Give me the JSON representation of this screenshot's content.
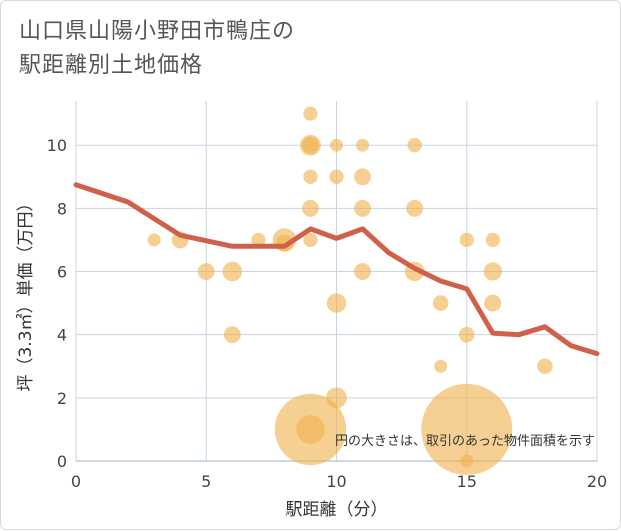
{
  "title_line1": "山口県山陽小野田市鴨庄の",
  "title_line2": "駅距離別土地価格",
  "chart_data": {
    "type": "scatter",
    "xlabel": "駅距離（分）",
    "ylabel": "坪（3.3㎡）単価（万円）",
    "xlim": [
      0,
      20
    ],
    "ylim": [
      0,
      11.4
    ],
    "x_ticks": [
      0,
      5,
      10,
      15,
      20
    ],
    "y_ticks": [
      0,
      2,
      4,
      6,
      8,
      10
    ],
    "grid": true,
    "annotation": "円の大きさは、取引のあった物件面積を示す",
    "colors": {
      "points": "#f0b04a",
      "line": "#d0604a",
      "grid": "#c5d5e4"
    },
    "points": [
      {
        "x": 3,
        "y": 7.0,
        "size": 1
      },
      {
        "x": 4,
        "y": 7.0,
        "size": 1.3
      },
      {
        "x": 5,
        "y": 6.0,
        "size": 1.3
      },
      {
        "x": 6,
        "y": 6.0,
        "size": 1.5
      },
      {
        "x": 6,
        "y": 4.0,
        "size": 1.3
      },
      {
        "x": 7,
        "y": 7.0,
        "size": 1.1
      },
      {
        "x": 8,
        "y": 7.0,
        "size": 1.8
      },
      {
        "x": 8,
        "y": 6.9,
        "size": 1.3
      },
      {
        "x": 9,
        "y": 11.0,
        "size": 1.1
      },
      {
        "x": 9,
        "y": 10.0,
        "size": 1.6
      },
      {
        "x": 9,
        "y": 10.0,
        "size": 1.3
      },
      {
        "x": 9,
        "y": 9.0,
        "size": 1.1
      },
      {
        "x": 9,
        "y": 8.0,
        "size": 1.3
      },
      {
        "x": 9,
        "y": 7.0,
        "size": 1.1
      },
      {
        "x": 9,
        "y": 1.0,
        "size": 5.5
      },
      {
        "x": 9,
        "y": 1.0,
        "size": 2.2
      },
      {
        "x": 10,
        "y": 10.0,
        "size": 1.0
      },
      {
        "x": 10,
        "y": 9.0,
        "size": 1.1
      },
      {
        "x": 10,
        "y": 5.0,
        "size": 1.5
      },
      {
        "x": 10,
        "y": 2.0,
        "size": 1.6
      },
      {
        "x": 11,
        "y": 10.0,
        "size": 1.0
      },
      {
        "x": 11,
        "y": 9.0,
        "size": 1.3
      },
      {
        "x": 11,
        "y": 8.0,
        "size": 1.3
      },
      {
        "x": 11,
        "y": 6.0,
        "size": 1.3
      },
      {
        "x": 13,
        "y": 10.0,
        "size": 1.1
      },
      {
        "x": 13,
        "y": 8.0,
        "size": 1.3
      },
      {
        "x": 13,
        "y": 6.0,
        "size": 1.5
      },
      {
        "x": 14,
        "y": 5.0,
        "size": 1.2
      },
      {
        "x": 14,
        "y": 3.0,
        "size": 1.0
      },
      {
        "x": 15,
        "y": 7.0,
        "size": 1.1
      },
      {
        "x": 15,
        "y": 4.0,
        "size": 1.2
      },
      {
        "x": 15,
        "y": 1.0,
        "size": 7.0
      },
      {
        "x": 15,
        "y": 0.0,
        "size": 1.0
      },
      {
        "x": 16,
        "y": 7.0,
        "size": 1.1
      },
      {
        "x": 16,
        "y": 6.0,
        "size": 1.4
      },
      {
        "x": 16,
        "y": 5.0,
        "size": 1.3
      },
      {
        "x": 18,
        "y": 3.0,
        "size": 1.2
      }
    ],
    "line": {
      "x": [
        0,
        2,
        4,
        6,
        8,
        9,
        10,
        11,
        12,
        13,
        14,
        15,
        16,
        17,
        18,
        19,
        20
      ],
      "y": [
        8.75,
        8.2,
        7.15,
        6.8,
        6.8,
        7.35,
        7.05,
        7.35,
        6.6,
        6.1,
        5.7,
        5.45,
        4.05,
        4.0,
        4.25,
        3.65,
        3.4
      ]
    }
  }
}
